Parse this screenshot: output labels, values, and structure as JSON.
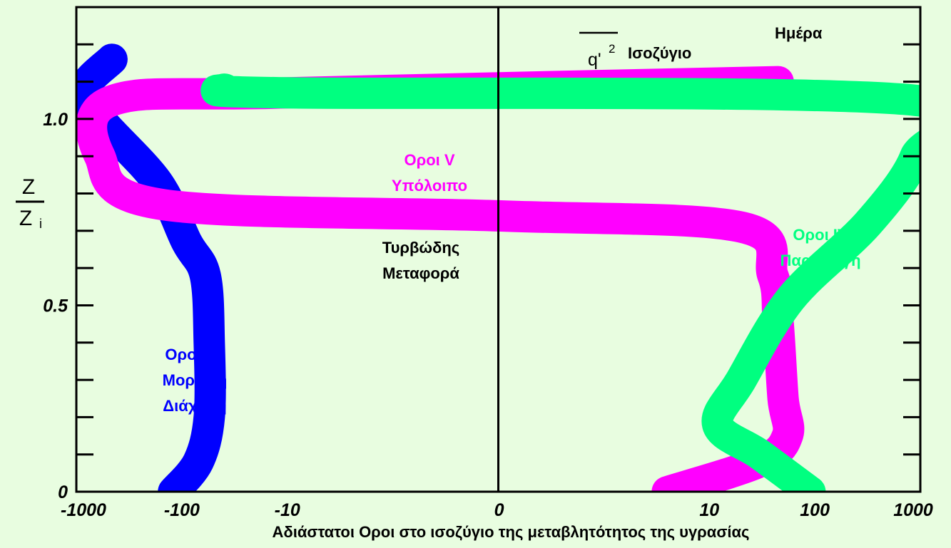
{
  "chart_data": {
    "type": "line",
    "title": "",
    "xlabel": "Αδιάστατοι Οροι στο ισοζύγιο της μεταβλητότητος της υγρασίας",
    "ylabel": {
      "numerator": "Z",
      "denominator": "Z",
      "subscript": "i"
    },
    "x_scale": "symlog",
    "xlim": [
      -1000,
      1000
    ],
    "ylim": [
      0,
      1.3
    ],
    "x_ticks": [
      "-1000",
      "-100",
      "-10",
      "0",
      "10",
      "100",
      "1000"
    ],
    "y_ticks": [
      "0",
      "0.5",
      "1.0"
    ],
    "header": {
      "quantity": "q'",
      "exponent": "2",
      "word": "Ισοζύγιο",
      "period": "Ημέρα"
    },
    "series": [
      {
        "name": "Οροι VII Μοριακή Διάχυση",
        "color": "#0000ff",
        "points": [
          [
            -120,
            0
          ],
          [
            -70,
            0.08
          ],
          [
            -55,
            0.2
          ],
          [
            -55,
            0.4
          ],
          [
            -60,
            0.58
          ],
          [
            -90,
            0.67
          ],
          [
            -170,
            0.83
          ],
          [
            -600,
            1.0
          ],
          [
            -850,
            1.08
          ],
          [
            -460,
            1.16
          ]
        ]
      },
      {
        "name": "Οροι V Υπόλοιπο",
        "color": "#ff00ff",
        "points": [
          [
            4,
            0
          ],
          [
            30,
            0.08
          ],
          [
            55,
            0.15
          ],
          [
            50,
            0.25
          ],
          [
            45,
            0.45
          ],
          [
            40,
            0.58
          ],
          [
            20,
            0.71
          ],
          [
            0,
            0.74
          ],
          [
            -150,
            0.77
          ],
          [
            -600,
            0.9
          ],
          [
            -450,
            1.05
          ],
          [
            -10,
            1.07
          ],
          [
            45,
            1.1
          ]
        ]
      },
      {
        "name": "Οροι IV Παραγωγή",
        "color": "#00ff80",
        "points": [
          [
            90,
            0
          ],
          [
            30,
            0.1
          ],
          [
            12,
            0.18
          ],
          [
            20,
            0.3
          ],
          [
            60,
            0.52
          ],
          [
            320,
            0.72
          ],
          [
            900,
            0.9
          ],
          [
            900,
            1.05
          ],
          [
            -10,
            1.07
          ],
          [
            -40,
            1.08
          ]
        ]
      }
    ],
    "annotations": [
      {
        "lines": [
          "Οροι VII",
          "Μοριακή",
          "Διάχυση"
        ],
        "color": "#0000ff"
      },
      {
        "lines": [
          "Οροι V",
          "Υπόλοιπο"
        ],
        "color": "#ff00ff"
      },
      {
        "lines": [
          "Τυρβώδης",
          "Μεταφορά"
        ],
        "color": "#000000"
      },
      {
        "lines": [
          "Οροι IV",
          "Παραγωγή"
        ],
        "color": "#00ff80"
      }
    ]
  }
}
